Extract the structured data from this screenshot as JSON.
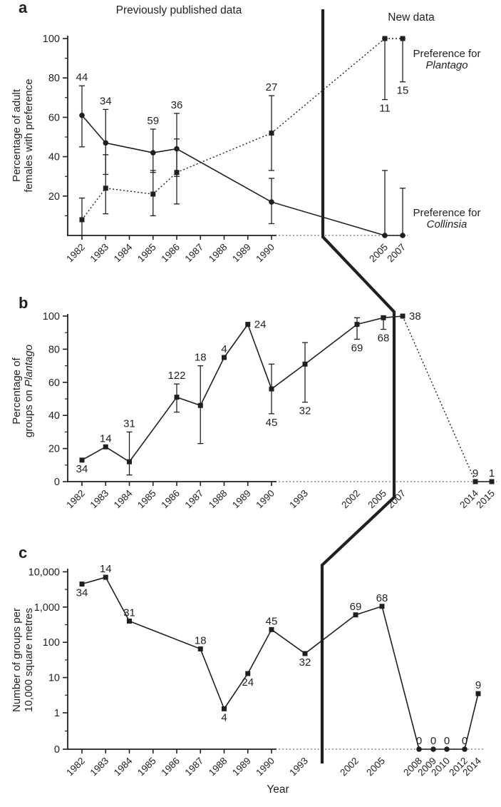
{
  "figure": {
    "panels": {
      "a": "a",
      "b": "b",
      "c": "c"
    },
    "top_left_title": "Previously published data",
    "top_right_title": "New data",
    "xlabel": "Year",
    "colors": {
      "ink": "#231f20",
      "dotted_axis": "#8a8a8a",
      "background": "#ffffff"
    }
  },
  "panel_a": {
    "ylabel_line1": "Percentage of adult",
    "ylabel_line2": "females with preference",
    "plantago_label": {
      "line1": "Preference for",
      "line2": "Plantago"
    },
    "collinsia_label": {
      "line1": "Preference for",
      "line2": "Collinsia"
    }
  },
  "panel_b": {
    "ylabel_line1": "Percentage of",
    "ylabel_line2_plain": "groups on ",
    "ylabel_line2_italic": "Plantago"
  },
  "panel_c": {
    "ylabel_line1": "Number of groups per",
    "ylabel_line2": "10,000 square metres"
  },
  "chart_data": [
    {
      "id": "a",
      "type": "line",
      "title": "Percentage of adult females with preference",
      "ylim": [
        0,
        100
      ],
      "yticks": [
        20,
        40,
        60,
        80,
        100
      ],
      "yticks_minor": [
        10,
        30,
        50,
        70,
        90
      ],
      "x_ticks": [
        1982,
        1983,
        1984,
        1985,
        1986,
        1987,
        1988,
        1989,
        1990,
        2005,
        2007
      ],
      "series": [
        {
          "name": "Preference for Collinsia",
          "marker": "circle",
          "line": "solid",
          "points": [
            {
              "year": 1982,
              "v": 61,
              "lo": 45,
              "hi": 76
            },
            {
              "year": 1983,
              "v": 47,
              "lo": 31,
              "hi": 64
            },
            {
              "year": 1985,
              "v": 42,
              "lo": 32,
              "hi": 54
            },
            {
              "year": 1986,
              "v": 44,
              "lo": 30,
              "hi": 62
            },
            {
              "year": 1990,
              "v": 17,
              "lo": 6,
              "hi": 29
            },
            {
              "year": 2005,
              "v": 0,
              "lo": 0,
              "hi": 33
            },
            {
              "year": 2007,
              "v": 0,
              "lo": 0,
              "hi": 24
            }
          ]
        },
        {
          "name": "Preference for Plantago",
          "marker": "square",
          "line": "dotted",
          "points": [
            {
              "year": 1982,
              "v": 8,
              "lo": 0,
              "hi": 19
            },
            {
              "year": 1983,
              "v": 24,
              "lo": 11,
              "hi": 41
            },
            {
              "year": 1985,
              "v": 21,
              "lo": 10,
              "hi": 33
            },
            {
              "year": 1986,
              "v": 32,
              "lo": 16,
              "hi": 49
            },
            {
              "year": 1990,
              "v": 52,
              "lo": 33,
              "hi": 71
            },
            {
              "year": 2005,
              "v": 100,
              "lo": 69,
              "hi": 100
            },
            {
              "year": 2007,
              "v": 100,
              "lo": 78,
              "hi": 100
            }
          ]
        }
      ],
      "n_labels": [
        {
          "year": 1982,
          "text": "44",
          "pos": "above",
          "at": 76
        },
        {
          "year": 1983,
          "text": "34",
          "pos": "above",
          "at": 64
        },
        {
          "year": 1985,
          "text": "59",
          "pos": "above",
          "at": 54
        },
        {
          "year": 1986,
          "text": "36",
          "pos": "above",
          "at": 62
        },
        {
          "year": 1990,
          "text": "27",
          "pos": "above",
          "at": 71
        },
        {
          "year": 2005,
          "text": "11",
          "pos": "below",
          "at": 69
        },
        {
          "year": 2007,
          "text": "15",
          "pos": "below",
          "at": 78
        }
      ]
    },
    {
      "id": "b",
      "type": "line",
      "title": "Percentage of groups on Plantago",
      "ylim": [
        0,
        100
      ],
      "yticks": [
        0,
        20,
        40,
        60,
        80,
        100
      ],
      "yticks_minor": [
        10,
        30,
        50,
        70,
        90
      ],
      "x_ticks": [
        1982,
        1983,
        1984,
        1985,
        1986,
        1987,
        1988,
        1989,
        1990,
        1993,
        2002,
        2005,
        2007,
        2014,
        2015
      ],
      "series": [
        {
          "name": "Groups on Plantago",
          "marker": "square",
          "line": "solid",
          "dotted_segments": [
            [
              2007,
              2014
            ]
          ],
          "points": [
            {
              "year": 1982,
              "v": 13
            },
            {
              "year": 1983,
              "v": 21
            },
            {
              "year": 1984,
              "v": 12,
              "lo": 4,
              "hi": 30
            },
            {
              "year": 1986,
              "v": 51,
              "lo": 42,
              "hi": 59
            },
            {
              "year": 1987,
              "v": 46,
              "lo": 23,
              "hi": 70
            },
            {
              "year": 1988,
              "v": 75
            },
            {
              "year": 1989,
              "v": 95
            },
            {
              "year": 1990,
              "v": 56,
              "lo": 41,
              "hi": 71
            },
            {
              "year": 1993,
              "v": 71,
              "lo": 48,
              "hi": 84
            },
            {
              "year": 2002,
              "v": 95,
              "lo": 86,
              "hi": 99
            },
            {
              "year": 2005,
              "v": 99,
              "lo": 92,
              "hi": 100
            },
            {
              "year": 2007,
              "v": 100
            },
            {
              "year": 2014,
              "v": 0
            },
            {
              "year": 2015,
              "v": 0
            }
          ]
        }
      ],
      "n_labels": [
        {
          "year": 1982,
          "text": "34",
          "pos": "below",
          "at": 13
        },
        {
          "year": 1983,
          "text": "14",
          "pos": "above",
          "at": 21
        },
        {
          "year": 1984,
          "text": "31",
          "pos": "above",
          "at": 30
        },
        {
          "year": 1986,
          "text": "122",
          "pos": "above",
          "at": 59
        },
        {
          "year": 1987,
          "text": "18",
          "pos": "above",
          "at": 70
        },
        {
          "year": 1988,
          "text": "4",
          "pos": "above",
          "at": 75
        },
        {
          "year": 1989,
          "text": "24",
          "pos": "right",
          "at": 95
        },
        {
          "year": 1990,
          "text": "45",
          "pos": "below",
          "at": 41
        },
        {
          "year": 1993,
          "text": "32",
          "pos": "below",
          "at": 48
        },
        {
          "year": 2002,
          "text": "69",
          "pos": "below",
          "at": 86
        },
        {
          "year": 2005,
          "text": "68",
          "pos": "below",
          "at": 92
        },
        {
          "year": 2007,
          "text": "38",
          "pos": "right",
          "at": 100
        },
        {
          "year": 2014,
          "text": "9",
          "pos": "above",
          "at": 0
        },
        {
          "year": 2015,
          "text": "1",
          "pos": "above",
          "at": 0
        }
      ]
    },
    {
      "id": "c",
      "type": "line",
      "title": "Number of groups per 10,000 square metres",
      "ylog": true,
      "yticks": [
        10000,
        1000,
        100,
        10,
        1,
        0
      ],
      "ytick_labels": [
        "10,000",
        "1,000",
        "100",
        "10",
        "1",
        "0"
      ],
      "x_ticks": [
        1982,
        1983,
        1984,
        1985,
        1986,
        1987,
        1988,
        1989,
        1990,
        1993,
        2002,
        2005,
        2008,
        2009,
        2010,
        2012,
        2014
      ],
      "series": [
        {
          "name": "Groups per 10,000 square metres",
          "marker": "square",
          "line": "solid",
          "points": [
            {
              "year": 1982,
              "v": 4500
            },
            {
              "year": 1983,
              "v": 7000
            },
            {
              "year": 1984,
              "v": 400
            },
            {
              "year": 1987,
              "v": 65
            },
            {
              "year": 1988,
              "v": 1.3
            },
            {
              "year": 1989,
              "v": 13
            },
            {
              "year": 1990,
              "v": 230
            },
            {
              "year": 1993,
              "v": 48
            },
            {
              "year": 2002,
              "v": 600
            },
            {
              "year": 2005,
              "v": 1050
            },
            {
              "year": 2008,
              "v": 0,
              "marker": "circle"
            },
            {
              "year": 2009,
              "v": 0,
              "marker": "circle"
            },
            {
              "year": 2010,
              "v": 0,
              "marker": "circle"
            },
            {
              "year": 2012,
              "v": 0,
              "marker": "circle"
            },
            {
              "year": 2014,
              "v": 3.5
            }
          ]
        }
      ],
      "n_labels": [
        {
          "year": 1982,
          "text": "34",
          "pos": "below",
          "at": 4500
        },
        {
          "year": 1983,
          "text": "14",
          "pos": "above",
          "at": 7000
        },
        {
          "year": 1984,
          "text": "31",
          "pos": "above",
          "at": 400
        },
        {
          "year": 1987,
          "text": "18",
          "pos": "above",
          "at": 65
        },
        {
          "year": 1988,
          "text": "4",
          "pos": "below",
          "at": 1.3
        },
        {
          "year": 1989,
          "text": "24",
          "pos": "below",
          "at": 13
        },
        {
          "year": 1990,
          "text": "45",
          "pos": "above",
          "at": 230
        },
        {
          "year": 1993,
          "text": "32",
          "pos": "below",
          "at": 48
        },
        {
          "year": 2002,
          "text": "69",
          "pos": "above",
          "at": 600
        },
        {
          "year": 2005,
          "text": "68",
          "pos": "above",
          "at": 1050
        },
        {
          "year": 2008,
          "text": "0",
          "pos": "above",
          "at": 0
        },
        {
          "year": 2009,
          "text": "0",
          "pos": "above",
          "at": 0
        },
        {
          "year": 2010,
          "text": "0",
          "pos": "above",
          "at": 0
        },
        {
          "year": 2012,
          "text": "0",
          "pos": "above",
          "at": 0
        },
        {
          "year": 2014,
          "text": "9",
          "pos": "above",
          "at": 3.5
        }
      ]
    }
  ]
}
